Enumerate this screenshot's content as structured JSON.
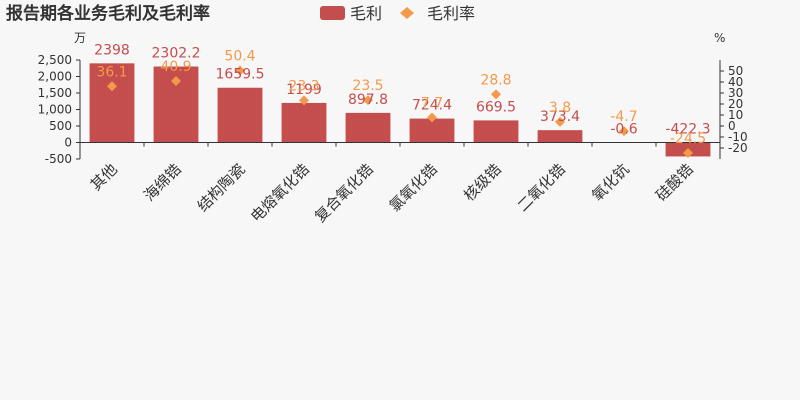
{
  "colors": {
    "bar": "#c44d4d",
    "rate": "#f29a4a",
    "axis": "#333333"
  },
  "legend": {
    "profit_icon": "rounded-rect",
    "rate_icon": "diamond"
  },
  "chart_data": {
    "type": "bar",
    "title": "报告期各业务毛利及毛利率",
    "left_unit": "万",
    "right_unit": "%",
    "categories": [
      "其他",
      "海绵锆",
      "结构陶瓷",
      "电熔氧化锆",
      "复合氧化锆",
      "氯氧化锆",
      "核级锆",
      "二氧化锆",
      "氧化钪",
      "硅酸锆"
    ],
    "series": [
      {
        "name": "毛利",
        "type": "bar",
        "axis": "left",
        "values": [
          2398,
          2302.2,
          1659.5,
          1199,
          897.8,
          724.4,
          669.5,
          373.4,
          -0.6,
          -422.3
        ]
      },
      {
        "name": "毛利率",
        "type": "scatter",
        "axis": "right",
        "values": [
          36.1,
          40.9,
          50.4,
          23.3,
          23.5,
          7.7,
          28.8,
          3.8,
          -4.7,
          -24.5
        ]
      }
    ],
    "bar_labels": [
      "2398",
      "2302.2",
      "1659.5",
      "1199",
      "897.8",
      "724.4",
      "669.5",
      "373.4",
      "-0.6",
      "-422.3"
    ],
    "rate_labels": [
      "36.1",
      "40.9",
      "50.4",
      "23.3",
      "23.5",
      "7.7",
      "28.8",
      "3.8",
      "-4.7",
      "-24.5"
    ],
    "left_axis": {
      "min": -500,
      "max": 2500,
      "ticks": [
        -500,
        0,
        500,
        1000,
        1500,
        2000,
        2500
      ],
      "tick_labels": [
        "-500",
        "0",
        "500",
        "1,000",
        "1,500",
        "2,000",
        "2,500"
      ]
    },
    "right_axis": {
      "min": -30,
      "max": 60,
      "ticks": [
        -20,
        -10,
        0,
        10,
        20,
        30,
        40,
        50
      ],
      "tick_labels": [
        "-20",
        "-10",
        "0",
        "10",
        "20",
        "30",
        "40",
        "50"
      ]
    },
    "grid": false,
    "legend_position": "top-center"
  }
}
